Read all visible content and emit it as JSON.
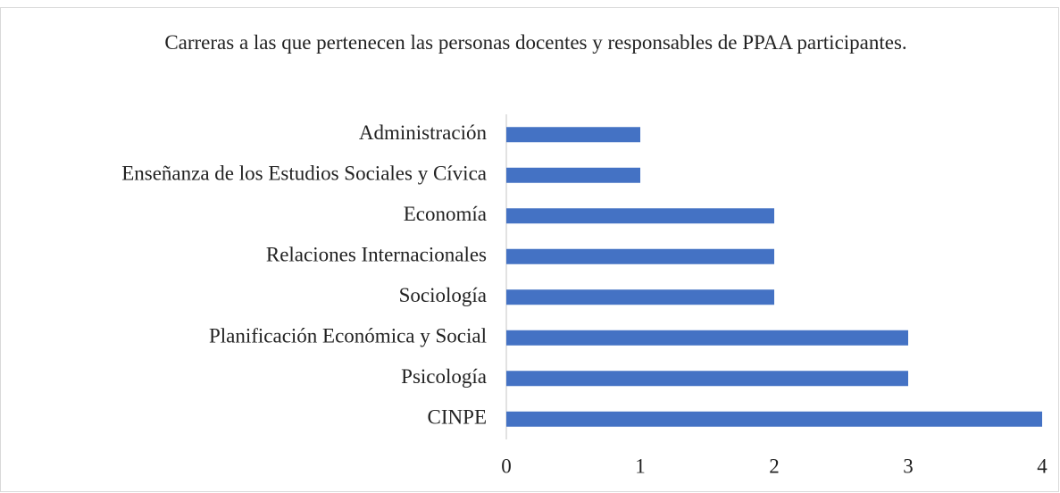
{
  "chart_data": {
    "type": "bar",
    "orientation": "horizontal",
    "title": "Carreras a las que pertenecen las personas docentes y responsables de PPAA participantes.",
    "categories": [
      "Administración",
      "Enseñanza de los Estudios Sociales y Cívica",
      "Economía",
      "Relaciones Internacionales",
      "Sociología",
      "Planificación Económica y Social",
      "Psicología",
      "CINPE"
    ],
    "values": [
      1,
      1,
      2,
      2,
      2,
      3,
      3,
      4
    ],
    "color": "#4472c4",
    "xlim": [
      0,
      4
    ],
    "xticks": [
      0,
      1,
      2,
      3,
      4
    ],
    "grid": false
  }
}
